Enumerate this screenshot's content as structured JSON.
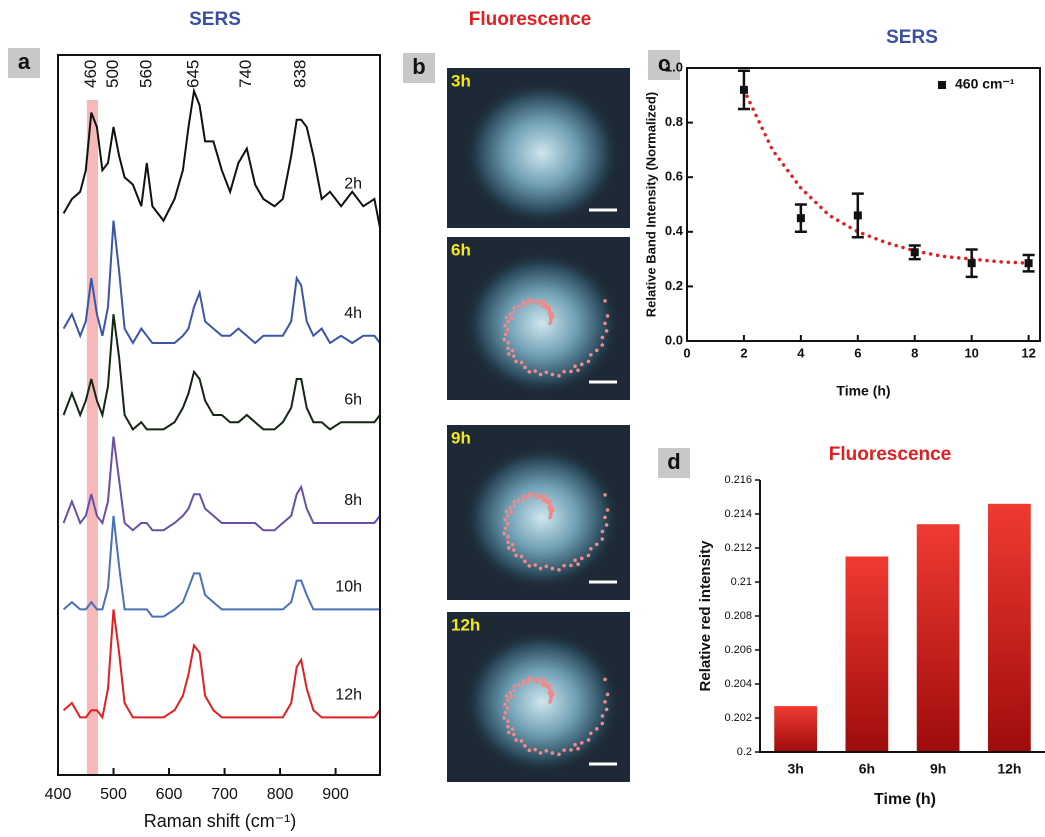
{
  "chart_data": [
    {
      "type": "line",
      "panel": "a",
      "title": "SERS",
      "title_color": "#3a4fa0",
      "xlabel": "Raman shift (cm⁻¹)",
      "xlim": [
        400,
        980
      ],
      "xticks": [
        400,
        500,
        600,
        700,
        800,
        900
      ],
      "ylim": [
        0,
        100
      ],
      "peaks": [
        460,
        500,
        560,
        645,
        740,
        838
      ],
      "highlight": [
        452,
        472
      ],
      "highlight_color": "#f6b8b8",
      "x": [
        410,
        425,
        440,
        450,
        460,
        470,
        480,
        490,
        500,
        510,
        520,
        535,
        550,
        560,
        570,
        590,
        610,
        625,
        635,
        645,
        655,
        665,
        680,
        695,
        710,
        725,
        740,
        755,
        770,
        790,
        805,
        820,
        830,
        838,
        848,
        860,
        875,
        890,
        910,
        930,
        950,
        970,
        980
      ],
      "series": [
        {
          "name": "2h",
          "color": "#111111",
          "values": [
            78,
            80,
            81,
            84,
            92,
            90,
            84,
            85,
            90,
            86,
            83,
            82,
            79,
            85,
            79,
            77,
            80,
            84,
            90,
            95,
            93,
            88,
            88,
            84,
            81,
            85,
            87,
            82,
            80,
            79,
            80,
            86,
            91,
            91,
            90,
            86,
            80,
            81,
            79,
            81,
            79,
            80,
            76
          ]
        },
        {
          "name": "4h",
          "color": "#3b55a8",
          "values": [
            62,
            64,
            61,
            63,
            69,
            64,
            61,
            65,
            77,
            70,
            62,
            60,
            62,
            61,
            60,
            60,
            60,
            61,
            62,
            65,
            67,
            63,
            62,
            61,
            61,
            62,
            61,
            60,
            61,
            61,
            61,
            63,
            69,
            68,
            63,
            61,
            62,
            60,
            61,
            60,
            61,
            61,
            60
          ]
        },
        {
          "name": "6h",
          "color": "#142614",
          "values": [
            50,
            53,
            50,
            52,
            55,
            52,
            50,
            54,
            64,
            58,
            50,
            48,
            49,
            48,
            48,
            48,
            49,
            51,
            53,
            56,
            55,
            52,
            50,
            50,
            49,
            49,
            50,
            49,
            48,
            48,
            49,
            51,
            55,
            55,
            51,
            49,
            49,
            48,
            49,
            49,
            49,
            49,
            50
          ]
        },
        {
          "name": "8h",
          "color": "#6a4fa8",
          "values": [
            35,
            38,
            35,
            36,
            39,
            36,
            35,
            38,
            47,
            41,
            35,
            34,
            35,
            35,
            34,
            34,
            35,
            36,
            37,
            39,
            39,
            37,
            36,
            35,
            35,
            35,
            35,
            35,
            34,
            34,
            35,
            36,
            39,
            40,
            37,
            35,
            35,
            35,
            35,
            35,
            35,
            35,
            36
          ]
        },
        {
          "name": "10h",
          "color": "#4a70b8",
          "values": [
            23,
            24,
            23,
            23,
            24,
            23,
            23,
            26,
            36,
            29,
            23,
            23,
            23,
            23,
            22,
            22,
            23,
            24,
            26,
            28,
            28,
            25,
            24,
            23,
            23,
            23,
            23,
            23,
            23,
            23,
            23,
            24,
            27,
            27,
            25,
            23,
            23,
            23,
            23,
            23,
            23,
            23,
            23
          ]
        },
        {
          "name": "12h",
          "color": "#e02020",
          "values": [
            9,
            10,
            8,
            8,
            9,
            9,
            8,
            12,
            23,
            17,
            10,
            8,
            8,
            8,
            8,
            8,
            9,
            11,
            14,
            18,
            17,
            11,
            9,
            8,
            8,
            8,
            8,
            8,
            8,
            8,
            8,
            10,
            15,
            16,
            12,
            9,
            8,
            8,
            8,
            8,
            8,
            8,
            9
          ]
        }
      ]
    },
    {
      "type": "image",
      "panel": "b",
      "title": "Fluorescence",
      "title_color": "#e02020",
      "labels": [
        "3h",
        "6h",
        "9h",
        "12h"
      ]
    },
    {
      "type": "scatter",
      "panel": "c",
      "title": "SERS",
      "title_color": "#3a4fa0",
      "xlabel": "Time (h)",
      "ylabel": "Relative Band Intensity (Normalized)",
      "xlim": [
        0,
        12.4
      ],
      "xticks": [
        0,
        2,
        4,
        6,
        8,
        10,
        12
      ],
      "ylim": [
        0,
        1
      ],
      "yticks": [
        {
          "value": 0,
          "label": "0.0"
        },
        0.2,
        0.4,
        0.6,
        0.8,
        {
          "value": 1,
          "label": "1.0"
        }
      ],
      "series": [
        {
          "name": "460 cm⁻¹",
          "color": "#111111",
          "x": [
            2,
            4,
            6,
            8,
            10,
            12
          ],
          "values": [
            0.92,
            0.45,
            0.46,
            0.325,
            0.285,
            0.285
          ],
          "errors": [
            0.07,
            0.05,
            0.08,
            0.025,
            0.05,
            0.03
          ]
        }
      ],
      "fit": {
        "color": "#e02020",
        "x": [
          2,
          3,
          4,
          5,
          6,
          7,
          8,
          9,
          10,
          11,
          12
        ],
        "values": [
          0.92,
          0.7,
          0.56,
          0.46,
          0.4,
          0.36,
          0.33,
          0.31,
          0.3,
          0.29,
          0.285
        ]
      },
      "legend": "upper right"
    },
    {
      "type": "bar",
      "panel": "d",
      "title": "Fluorescence",
      "title_color": "#e02020",
      "xlabel": "Time (h)",
      "ylabel": "Relative red intensity",
      "categories": [
        "3h",
        "6h",
        "9h",
        "12h"
      ],
      "values": [
        0.2027,
        0.2115,
        0.2134,
        0.2146
      ],
      "colors": [
        "#f03a32",
        "#9e0c0c"
      ],
      "ylim": [
        0.2,
        0.216
      ],
      "yticks": [
        0.2,
        0.202,
        0.204,
        0.206,
        0.208,
        0.21,
        0.212,
        0.214,
        0.216
      ]
    }
  ]
}
